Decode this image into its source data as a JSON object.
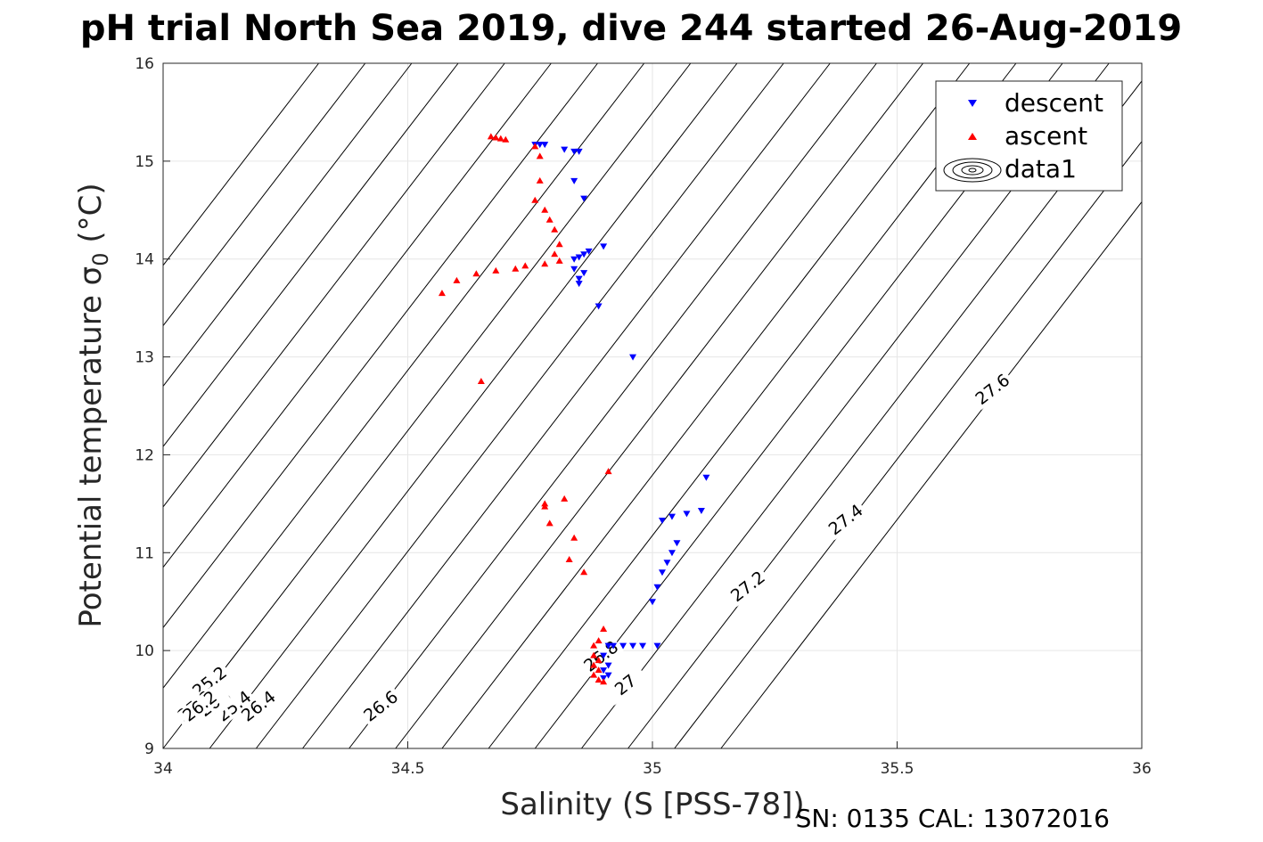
{
  "chart_data": {
    "type": "scatter",
    "title": "pH trial North Sea 2019, dive 244 started 26-Aug-2019",
    "xlabel": "Salinity (S [PSS-78])",
    "ylabel": "Potential temperature σ",
    "ylabel_subscript": "0",
    "ylabel_unit": " (°C)",
    "xlim": [
      34,
      36
    ],
    "ylim": [
      9,
      16
    ],
    "xticks": [
      "34",
      "34.5",
      "35",
      "35.5",
      "36"
    ],
    "yticks": [
      "9",
      "10",
      "11",
      "12",
      "13",
      "14",
      "15",
      "16"
    ],
    "grid": true,
    "legend_position": "top-right",
    "footer": "SN: 0135  CAL: 13072016",
    "colors": {
      "descent": "#0000ff",
      "ascent": "#ff0000",
      "contour": "#000000",
      "grid": "#e6e6e6"
    },
    "contour_levels": [
      {
        "level": "25.2",
        "x0": 34.0,
        "label_at": 34.1
      },
      {
        "level": "25.4",
        "x0": 34.095,
        "label_at": 34.15
      },
      {
        "level": "25.6",
        "x0": 34.19,
        "label_at": 34.11
      },
      {
        "level": "25.8",
        "x0": 34.285,
        "label_at": 34.07
      },
      {
        "level": "26",
        "x0": 34.38,
        "label_at": 34.1
      },
      {
        "level": "26.2",
        "x0": 34.475,
        "label_at": 34.08
      },
      {
        "level": "26.4",
        "x0": 34.57,
        "label_at": 34.2
      },
      {
        "level": "26.6",
        "x0": 34.665,
        "label_at": 34.45
      },
      {
        "level": "26.8",
        "x0": 34.76,
        "label_at": 34.9
      },
      {
        "level": "27",
        "x0": 34.855,
        "label_at": 34.95
      },
      {
        "level": "27.2",
        "x0": 34.95,
        "label_at": 35.2
      },
      {
        "level": "27.4",
        "x0": 35.045,
        "label_at": 35.4
      },
      {
        "level": "27.6",
        "x0": 35.14,
        "label_at": 35.7
      }
    ],
    "series": [
      {
        "name": "descent",
        "marker": "triangle-down",
        "x": [
          34.76,
          34.77,
          34.78,
          34.82,
          34.84,
          34.85,
          34.84,
          34.86,
          34.84,
          34.85,
          34.86,
          34.87,
          34.84,
          34.85,
          34.86,
          34.85,
          34.9,
          34.89,
          34.96,
          35.11,
          35.1,
          35.07,
          35.04,
          35.02,
          35.05,
          35.04,
          35.03,
          35.02,
          35.01,
          35.0,
          34.91,
          34.92,
          34.94,
          34.96,
          34.98,
          35.01,
          34.9,
          34.91,
          34.9,
          34.91,
          34.9
        ],
        "y": [
          15.17,
          15.17,
          15.17,
          15.12,
          15.1,
          15.1,
          14.8,
          14.62,
          14.0,
          14.02,
          14.05,
          14.08,
          13.9,
          13.8,
          13.86,
          13.75,
          14.13,
          13.52,
          13.0,
          11.77,
          11.43,
          11.4,
          11.37,
          11.33,
          11.1,
          11.0,
          10.9,
          10.8,
          10.65,
          10.5,
          10.05,
          10.05,
          10.05,
          10.05,
          10.05,
          10.05,
          9.95,
          9.85,
          9.8,
          9.75,
          9.72
        ]
      },
      {
        "name": "ascent",
        "marker": "triangle-up",
        "x": [
          34.67,
          34.68,
          34.69,
          34.7,
          34.76,
          34.77,
          34.77,
          34.76,
          34.78,
          34.79,
          34.8,
          34.81,
          34.8,
          34.81,
          34.78,
          34.74,
          34.72,
          34.68,
          34.64,
          34.6,
          34.57,
          34.65,
          34.91,
          34.78,
          34.78,
          34.82,
          34.79,
          34.84,
          34.83,
          34.86,
          34.9,
          34.89,
          34.88,
          34.88,
          34.89,
          34.88,
          34.89,
          34.88,
          34.89,
          34.9
        ],
        "y": [
          15.25,
          15.24,
          15.23,
          15.22,
          15.15,
          15.05,
          14.8,
          14.6,
          14.5,
          14.4,
          14.3,
          14.15,
          14.05,
          13.98,
          13.95,
          13.93,
          13.9,
          13.88,
          13.85,
          13.78,
          13.65,
          12.75,
          11.83,
          11.5,
          11.47,
          11.55,
          11.3,
          11.15,
          10.93,
          10.8,
          10.22,
          10.1,
          10.05,
          9.95,
          9.9,
          9.85,
          9.8,
          9.75,
          9.7,
          9.68
        ]
      }
    ]
  },
  "legend": {
    "descent": "descent",
    "ascent": "ascent",
    "data1": "data1"
  }
}
